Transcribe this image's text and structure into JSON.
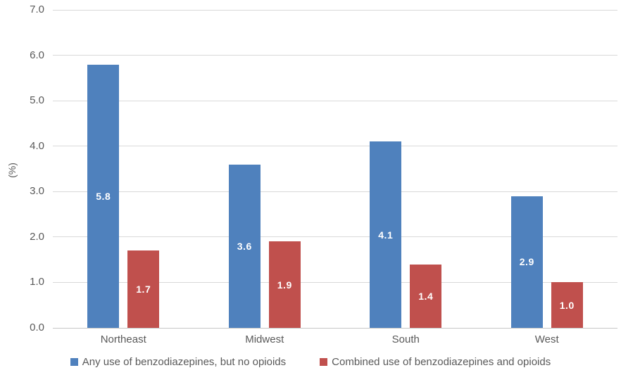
{
  "chart_data": {
    "type": "bar",
    "title": "",
    "categories": [
      "Northeast",
      "Midwest",
      "South",
      "West"
    ],
    "series": [
      {
        "name": "Any use of benzodiazepines, but no opioids",
        "color": "#4F81BD",
        "values": [
          5.8,
          3.6,
          4.1,
          2.9
        ]
      },
      {
        "name": "Combined use of benzodiazepines and opioids",
        "color": "#C0504D",
        "values": [
          1.7,
          1.9,
          1.4,
          1.0
        ]
      }
    ],
    "xlabel": "",
    "ylabel": "(%)",
    "ylim": [
      0,
      7
    ],
    "ytick_labels": [
      "0.0",
      "1.0",
      "2.0",
      "3.0",
      "4.0",
      "5.0",
      "6.0",
      "7.0"
    ],
    "grid": true,
    "legend_position": "bottom",
    "value_labels_position": "center",
    "value_label_color": "#FFFFFF",
    "gridline_color": "#D9D9D9",
    "text_color": "#595959"
  }
}
